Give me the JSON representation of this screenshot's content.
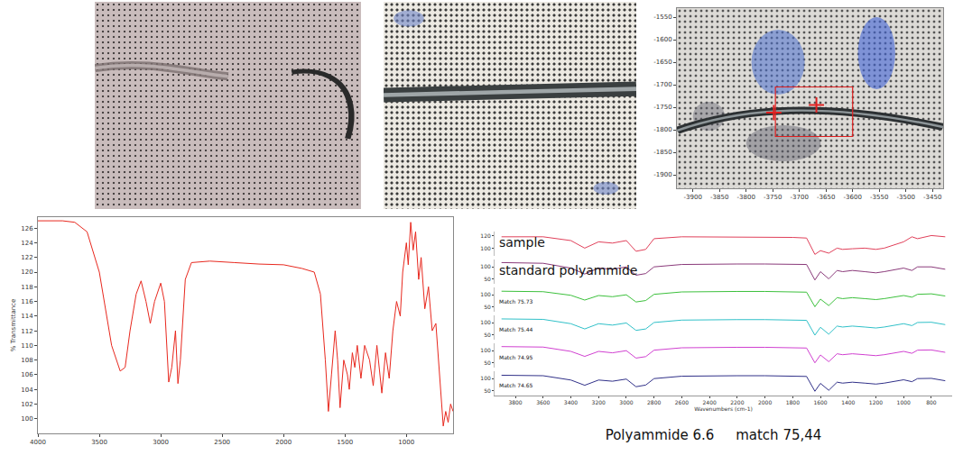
{
  "chart_data": [
    {
      "type": "line",
      "ylabel": "% Transmittance",
      "x": [
        4000,
        3900,
        3800,
        3700,
        3600,
        3500,
        3400,
        3330,
        3290,
        3250,
        3200,
        3160,
        3120,
        3085,
        3050,
        3000,
        2970,
        2935,
        2910,
        2880,
        2860,
        2840,
        2800,
        2750,
        2600,
        2400,
        2200,
        2000,
        1850,
        1750,
        1700,
        1660,
        1635,
        1610,
        1580,
        1560,
        1540,
        1510,
        1480,
        1465,
        1440,
        1420,
        1400,
        1370,
        1340,
        1300,
        1270,
        1240,
        1200,
        1170,
        1140,
        1110,
        1080,
        1050,
        1030,
        1000,
        985,
        965,
        945,
        925,
        900,
        880,
        850,
        820,
        790,
        760,
        730,
        700,
        680,
        660,
        640,
        620
      ],
      "values": [
        127,
        127,
        127,
        126.8,
        125.5,
        120,
        110,
        106.5,
        107,
        112,
        117,
        118.8,
        116,
        113,
        116,
        118.5,
        116,
        105,
        107,
        112,
        104.8,
        108,
        119,
        121.3,
        121.5,
        121.3,
        121.1,
        121,
        120.5,
        120,
        117,
        108,
        101,
        106,
        112,
        108,
        101.5,
        108,
        106,
        104,
        109,
        107,
        110,
        105.5,
        110,
        108,
        104.5,
        110,
        103.5,
        109,
        105.5,
        112,
        116,
        114,
        120,
        124,
        121,
        126.8,
        123,
        125.5,
        119,
        122,
        115,
        118,
        112,
        113,
        106,
        99,
        101,
        99.5,
        102,
        101
      ],
      "color": "#e8281e",
      "xlim": [
        4000,
        620
      ],
      "ylim": [
        98,
        127.5
      ],
      "xticks": [
        4000,
        3500,
        3000,
        2500,
        2000,
        1500,
        1000
      ],
      "yticks": [
        100,
        102,
        104,
        106,
        108,
        110,
        112,
        114,
        116,
        118,
        120,
        122,
        124,
        126
      ]
    },
    {
      "type": "line",
      "xlabel": "Wavenumbers (cm-1)",
      "x": [
        3900,
        3600,
        3400,
        3300,
        3200,
        3100,
        3000,
        2930,
        2860,
        2800,
        2600,
        2400,
        2200,
        2000,
        1800,
        1700,
        1640,
        1600,
        1540,
        1480,
        1440,
        1370,
        1280,
        1200,
        1140,
        1000,
        940,
        900,
        800,
        700
      ],
      "xlim": [
        3950,
        650
      ],
      "xticks": [
        3800,
        3600,
        3400,
        3200,
        3000,
        2800,
        2600,
        2400,
        2200,
        2000,
        1800,
        1600,
        1400,
        1200,
        1000,
        800
      ],
      "series": [
        {
          "name": "sample",
          "color": "#e0405a",
          "ylim": [
            88,
            126
          ],
          "yticks": [
            100,
            120
          ],
          "values": [
            118,
            118,
            112,
            100,
            110,
            108,
            112,
            95,
            98,
            115,
            118,
            118,
            118,
            118,
            117,
            116,
            90,
            96,
            92,
            100,
            98,
            99,
            100,
            98,
            100,
            110,
            118,
            115,
            120,
            118
          ]
        },
        {
          "name": "standard polyammide",
          "color": "#8a3a7a",
          "ylim": [
            30,
            130
          ],
          "yticks": [
            50,
            100
          ],
          "values": [
            118,
            115,
            95,
            70,
            95,
            90,
            100,
            65,
            72,
            100,
            110,
            112,
            112,
            112,
            112,
            110,
            45,
            80,
            50,
            85,
            80,
            85,
            80,
            75,
            80,
            95,
            85,
            100,
            100,
            90
          ]
        },
        {
          "name": "Match 75.73",
          "color": "#3cc03c",
          "ylim": [
            30,
            130
          ],
          "yticks": [
            50,
            100
          ],
          "values": [
            115,
            113,
            98,
            78,
            97,
            92,
            100,
            70,
            76,
            102,
            112,
            114,
            114,
            114,
            113,
            111,
            50,
            82,
            55,
            88,
            84,
            88,
            84,
            80,
            84,
            97,
            90,
            102,
            104,
            95
          ]
        },
        {
          "name": "Match 75.44",
          "color": "#30c0c8",
          "ylim": [
            30,
            130
          ],
          "yticks": [
            50,
            100
          ],
          "values": [
            116,
            114,
            96,
            74,
            96,
            90,
            99,
            68,
            74,
            101,
            111,
            113,
            113,
            113,
            112,
            110,
            48,
            81,
            52,
            86,
            82,
            86,
            82,
            78,
            82,
            96,
            88,
            101,
            102,
            92
          ]
        },
        {
          "name": "Match 74.95",
          "color": "#d040d0",
          "ylim": [
            30,
            130
          ],
          "yticks": [
            50,
            100
          ],
          "values": [
            117,
            115,
            97,
            76,
            97,
            91,
            100,
            69,
            75,
            102,
            112,
            114,
            114,
            114,
            113,
            111,
            49,
            82,
            54,
            87,
            83,
            87,
            83,
            79,
            83,
            97,
            89,
            102,
            103,
            93
          ]
        },
        {
          "name": "Match 74.65",
          "color": "#303088",
          "ylim": [
            30,
            130
          ],
          "yticks": [
            50,
            100
          ],
          "values": [
            114,
            112,
            94,
            72,
            94,
            89,
            98,
            66,
            73,
            100,
            110,
            112,
            112,
            112,
            111,
            109,
            47,
            80,
            51,
            85,
            81,
            85,
            81,
            77,
            81,
            95,
            87,
            100,
            101,
            91
          ]
        }
      ]
    },
    {
      "type": "image",
      "xlim": [
        -3930,
        -3430
      ],
      "ylim": [
        -1930,
        -1530
      ],
      "xticks": [
        -3900,
        -3850,
        -3800,
        -3750,
        -3700,
        -3650,
        -3600,
        -3550,
        -3500,
        -3450
      ],
      "yticks": [
        -1900,
        -1850,
        -1800,
        -1750,
        -1700,
        -1650,
        -1600,
        -1550
      ],
      "region": {
        "x": [
          -3745,
          -3600
        ],
        "y": [
          -1815,
          -1705
        ]
      },
      "points": {
        "x": [
          -3748,
          -3668
        ],
        "y": [
          -1762,
          -1745
        ]
      },
      "color": "#e02020",
      "marker": "cross"
    }
  ],
  "caption": "Polyammide 6.6     match 75,44"
}
